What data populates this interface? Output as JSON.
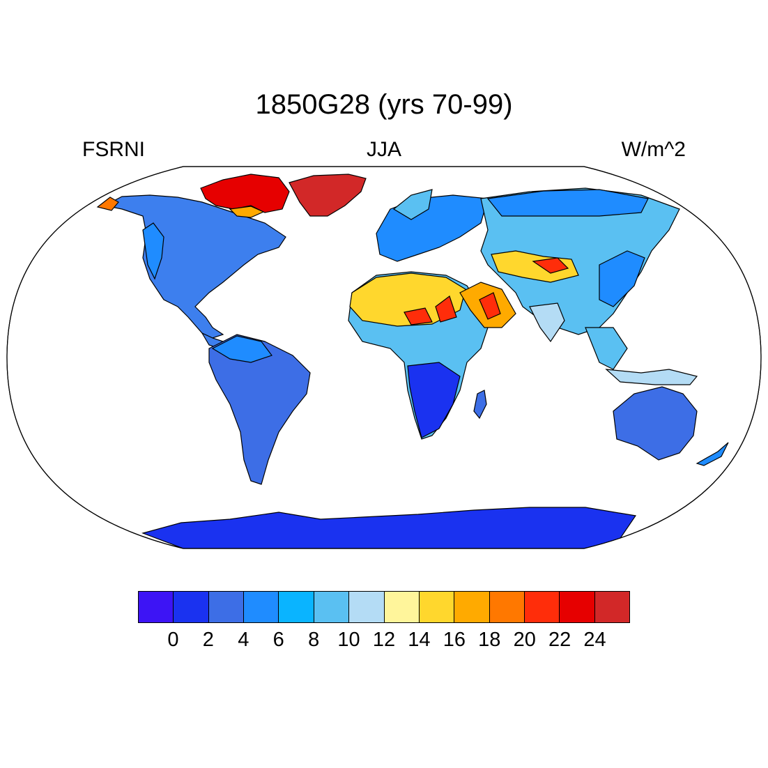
{
  "title": "1850G28 (yrs 70-99)",
  "left_string": "FSRNI",
  "center_string": "JJA",
  "right_string": "W/m^2",
  "colorbar": {
    "colors": [
      "#3d14f5",
      "#1a32f0",
      "#3d6ee6",
      "#1f8cff",
      "#0ab4ff",
      "#5ac0f2",
      "#b4dcf5",
      "#fff59b",
      "#ffd72d",
      "#ffaa00",
      "#ff7800",
      "#ff2d0a",
      "#e60000",
      "#d22828"
    ],
    "labels": [
      "0",
      "2",
      "4",
      "6",
      "8",
      "10",
      "12",
      "14",
      "16",
      "18",
      "20",
      "22",
      "24"
    ]
  }
}
